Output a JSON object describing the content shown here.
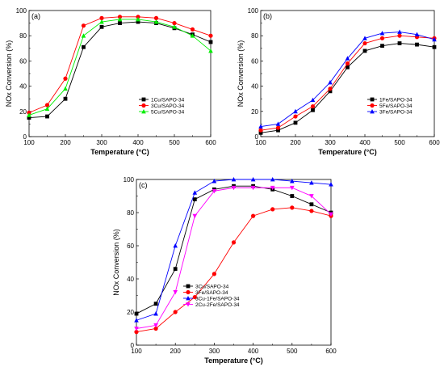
{
  "chart_data": [
    {
      "type": "line",
      "panel_label": "(a)",
      "xlabel": "Temperature (°C)",
      "ylabel": "NOx Conversion (%)",
      "xlim": [
        100,
        600
      ],
      "ylim": [
        0,
        100
      ],
      "xticks": [
        100,
        200,
        300,
        400,
        500,
        600
      ],
      "yticks": [
        0,
        20,
        40,
        60,
        80,
        100
      ],
      "grid": false,
      "legend_position": "bottom-right",
      "x": [
        100,
        150,
        200,
        250,
        300,
        350,
        400,
        450,
        500,
        550,
        600
      ],
      "series": [
        {
          "name": "1Cu/SAPO-34",
          "color": "#000000",
          "marker": "square",
          "values": [
            15,
            16,
            30,
            71,
            87,
            90,
            91,
            90,
            86,
            81,
            75
          ]
        },
        {
          "name": "3Cu/SAPO-34",
          "color": "#ff0000",
          "marker": "circle",
          "values": [
            19,
            25,
            46,
            88,
            94,
            95,
            95,
            94,
            90,
            85,
            80
          ]
        },
        {
          "name": "5Cu/SAPO-34",
          "color": "#00ee00",
          "marker": "triangle",
          "values": [
            17,
            22,
            38,
            80,
            91,
            93,
            93,
            91,
            87,
            80,
            68
          ]
        }
      ]
    },
    {
      "type": "line",
      "panel_label": "(b)",
      "xlabel": "Temperature (°C)",
      "ylabel": "NOx Conversion (%)",
      "xlim": [
        100,
        600
      ],
      "ylim": [
        0,
        100
      ],
      "xticks": [
        100,
        200,
        300,
        400,
        500,
        600
      ],
      "yticks": [
        0,
        20,
        40,
        60,
        80,
        100
      ],
      "grid": false,
      "legend_position": "bottom-right",
      "x": [
        100,
        150,
        200,
        250,
        300,
        350,
        400,
        450,
        500,
        550,
        600
      ],
      "series": [
        {
          "name": "1Fe/SAPO-34",
          "color": "#000000",
          "marker": "square",
          "values": [
            3,
            5,
            11,
            21,
            36,
            55,
            68,
            72,
            74,
            73,
            71
          ]
        },
        {
          "name": "5Fe/SAPO-34",
          "color": "#ff0000",
          "marker": "circle",
          "values": [
            5,
            7,
            16,
            24,
            38,
            58,
            74,
            78,
            80,
            79,
            78
          ]
        },
        {
          "name": "3Fe/SAPO-34",
          "color": "#0000ff",
          "marker": "triangle",
          "values": [
            8,
            10,
            20,
            29,
            43,
            62,
            78,
            82,
            83,
            81,
            77
          ]
        }
      ]
    },
    {
      "type": "line",
      "panel_label": "(c)",
      "xlabel": "Temperature (°C)",
      "ylabel": "NOx Conversion (%)",
      "xlim": [
        100,
        600
      ],
      "ylim": [
        0,
        100
      ],
      "xticks": [
        100,
        200,
        300,
        400,
        500,
        600
      ],
      "yticks": [
        0,
        20,
        40,
        60,
        80,
        100
      ],
      "grid": false,
      "legend_position": "bottom-left",
      "x": [
        100,
        150,
        200,
        250,
        300,
        350,
        400,
        450,
        500,
        550,
        600
      ],
      "series": [
        {
          "name": "3Cu/SAPO-34",
          "color": "#000000",
          "marker": "square",
          "values": [
            19,
            25,
            46,
            88,
            94,
            96,
            96,
            94,
            90,
            85,
            80
          ]
        },
        {
          "name": "3Fe/SAPO-34",
          "color": "#ff0000",
          "marker": "circle",
          "values": [
            8,
            10,
            20,
            29,
            43,
            62,
            78,
            82,
            83,
            81,
            78
          ]
        },
        {
          "name": "3Cu-1Fe/SAPO-34",
          "color": "#0000ff",
          "marker": "triangle",
          "values": [
            15,
            19,
            60,
            92,
            99,
            100,
            100,
            100,
            99,
            98,
            97
          ]
        },
        {
          "name": "2Cu-2Fe/SAPO-34",
          "color": "#ff00ff",
          "marker": "triangle-down",
          "values": [
            10,
            12,
            32,
            78,
            93,
            95,
            95,
            95,
            95,
            90,
            79
          ]
        }
      ]
    }
  ]
}
